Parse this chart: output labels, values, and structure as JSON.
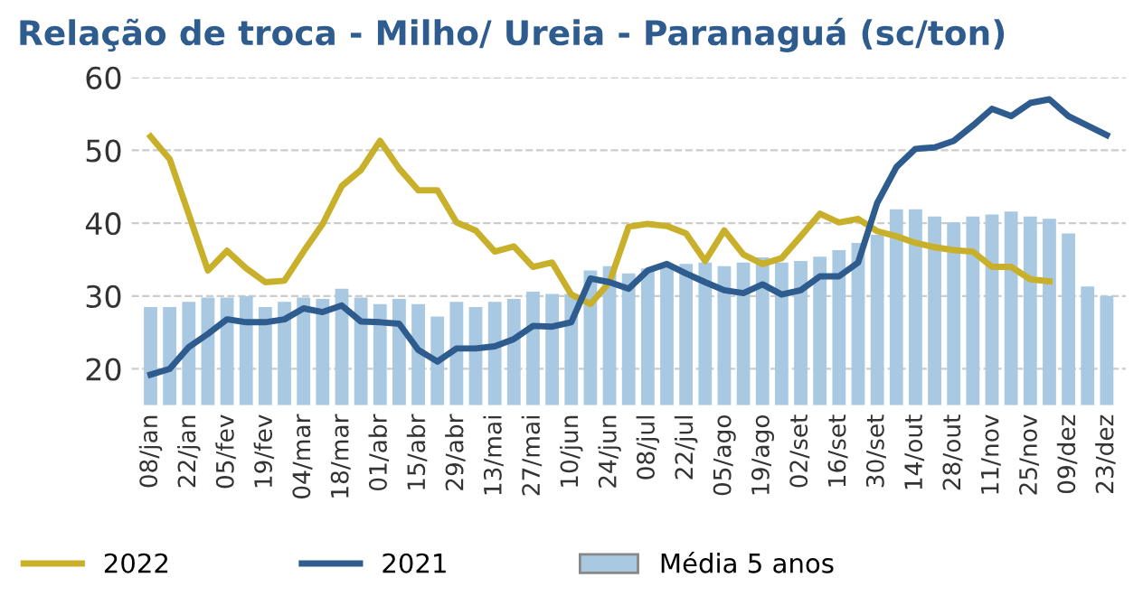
{
  "chart_data": {
    "type": "bar",
    "title": "Relação de troca - Milho/ Ureia - Paranaguá (sc/ton)",
    "categories": [
      "08/jan",
      null,
      "22/jan",
      null,
      "05/fev",
      null,
      "19/fev",
      null,
      "04/mar",
      null,
      "18/mar",
      null,
      "01/abr",
      null,
      "15/abr",
      null,
      "29/abr",
      null,
      "13/mai",
      null,
      "27/mai",
      null,
      "10/jun",
      null,
      "24/jun",
      null,
      "08/jul",
      null,
      "22/jul",
      null,
      "05/ago",
      null,
      "19/ago",
      null,
      "02/set",
      null,
      "16/set",
      null,
      "30/set",
      null,
      "14/out",
      null,
      "28/out",
      null,
      "11/nov",
      null,
      "25/nov",
      null,
      "09/dez",
      null,
      "23/dez"
    ],
    "series": [
      {
        "name": "2022",
        "type": "line",
        "color": "#c9b02a",
        "values": [
          51.9,
          48.8,
          41.2,
          33.5,
          36.2,
          33.8,
          31.9,
          32.1,
          36.1,
          39.9,
          45.1,
          47.3,
          51.3,
          47.5,
          44.5,
          44.5,
          40.1,
          39.0,
          36.1,
          36.8,
          34.0,
          34.6,
          30.2,
          28.9,
          31.9,
          39.5,
          39.9,
          39.6,
          38.6,
          34.8,
          39.0,
          35.7,
          34.4,
          35.2,
          38.2,
          41.3,
          40.1,
          40.6,
          38.9,
          38.2,
          37.3,
          36.7,
          36.3,
          36.1,
          34.0,
          34.0,
          32.3,
          32.0,
          null,
          null,
          null
        ]
      },
      {
        "name": "2021",
        "type": "line",
        "color": "#2e5c8e",
        "values": [
          19.2,
          20.0,
          23.0,
          24.8,
          26.8,
          26.4,
          26.4,
          26.8,
          28.3,
          27.8,
          28.7,
          26.5,
          26.4,
          26.2,
          22.6,
          21.0,
          22.8,
          22.8,
          23.1,
          24.1,
          25.9,
          25.8,
          26.4,
          32.4,
          31.9,
          31.0,
          33.5,
          34.4,
          33.1,
          31.9,
          30.8,
          30.4,
          31.6,
          30.2,
          30.8,
          32.7,
          32.7,
          34.6,
          42.8,
          47.7,
          50.2,
          50.4,
          51.3,
          53.4,
          55.7,
          54.7,
          56.5,
          57.0,
          54.7,
          53.4,
          52.1
        ]
      },
      {
        "name": "Média 5 anos",
        "color": "#a9c9e2",
        "values": [
          28.5,
          28.5,
          29.2,
          29.8,
          29.8,
          30.0,
          28.5,
          29.2,
          29.8,
          29.6,
          31.0,
          29.8,
          28.9,
          29.6,
          28.9,
          27.2,
          29.2,
          28.5,
          29.2,
          29.6,
          30.6,
          30.3,
          30.3,
          33.5,
          34.1,
          33.1,
          33.8,
          34.0,
          34.4,
          34.6,
          34.1,
          34.6,
          35.3,
          34.6,
          34.8,
          35.4,
          36.3,
          37.3,
          38.4,
          41.9,
          41.9,
          40.9,
          40.1,
          40.9,
          41.2,
          41.6,
          40.9,
          40.6,
          38.6,
          31.3,
          30.0
        ]
      }
    ],
    "ylim": [
      15,
      60
    ],
    "yticks": [
      20,
      30,
      40,
      50,
      60
    ],
    "grid": "y",
    "legend": "bottom"
  }
}
